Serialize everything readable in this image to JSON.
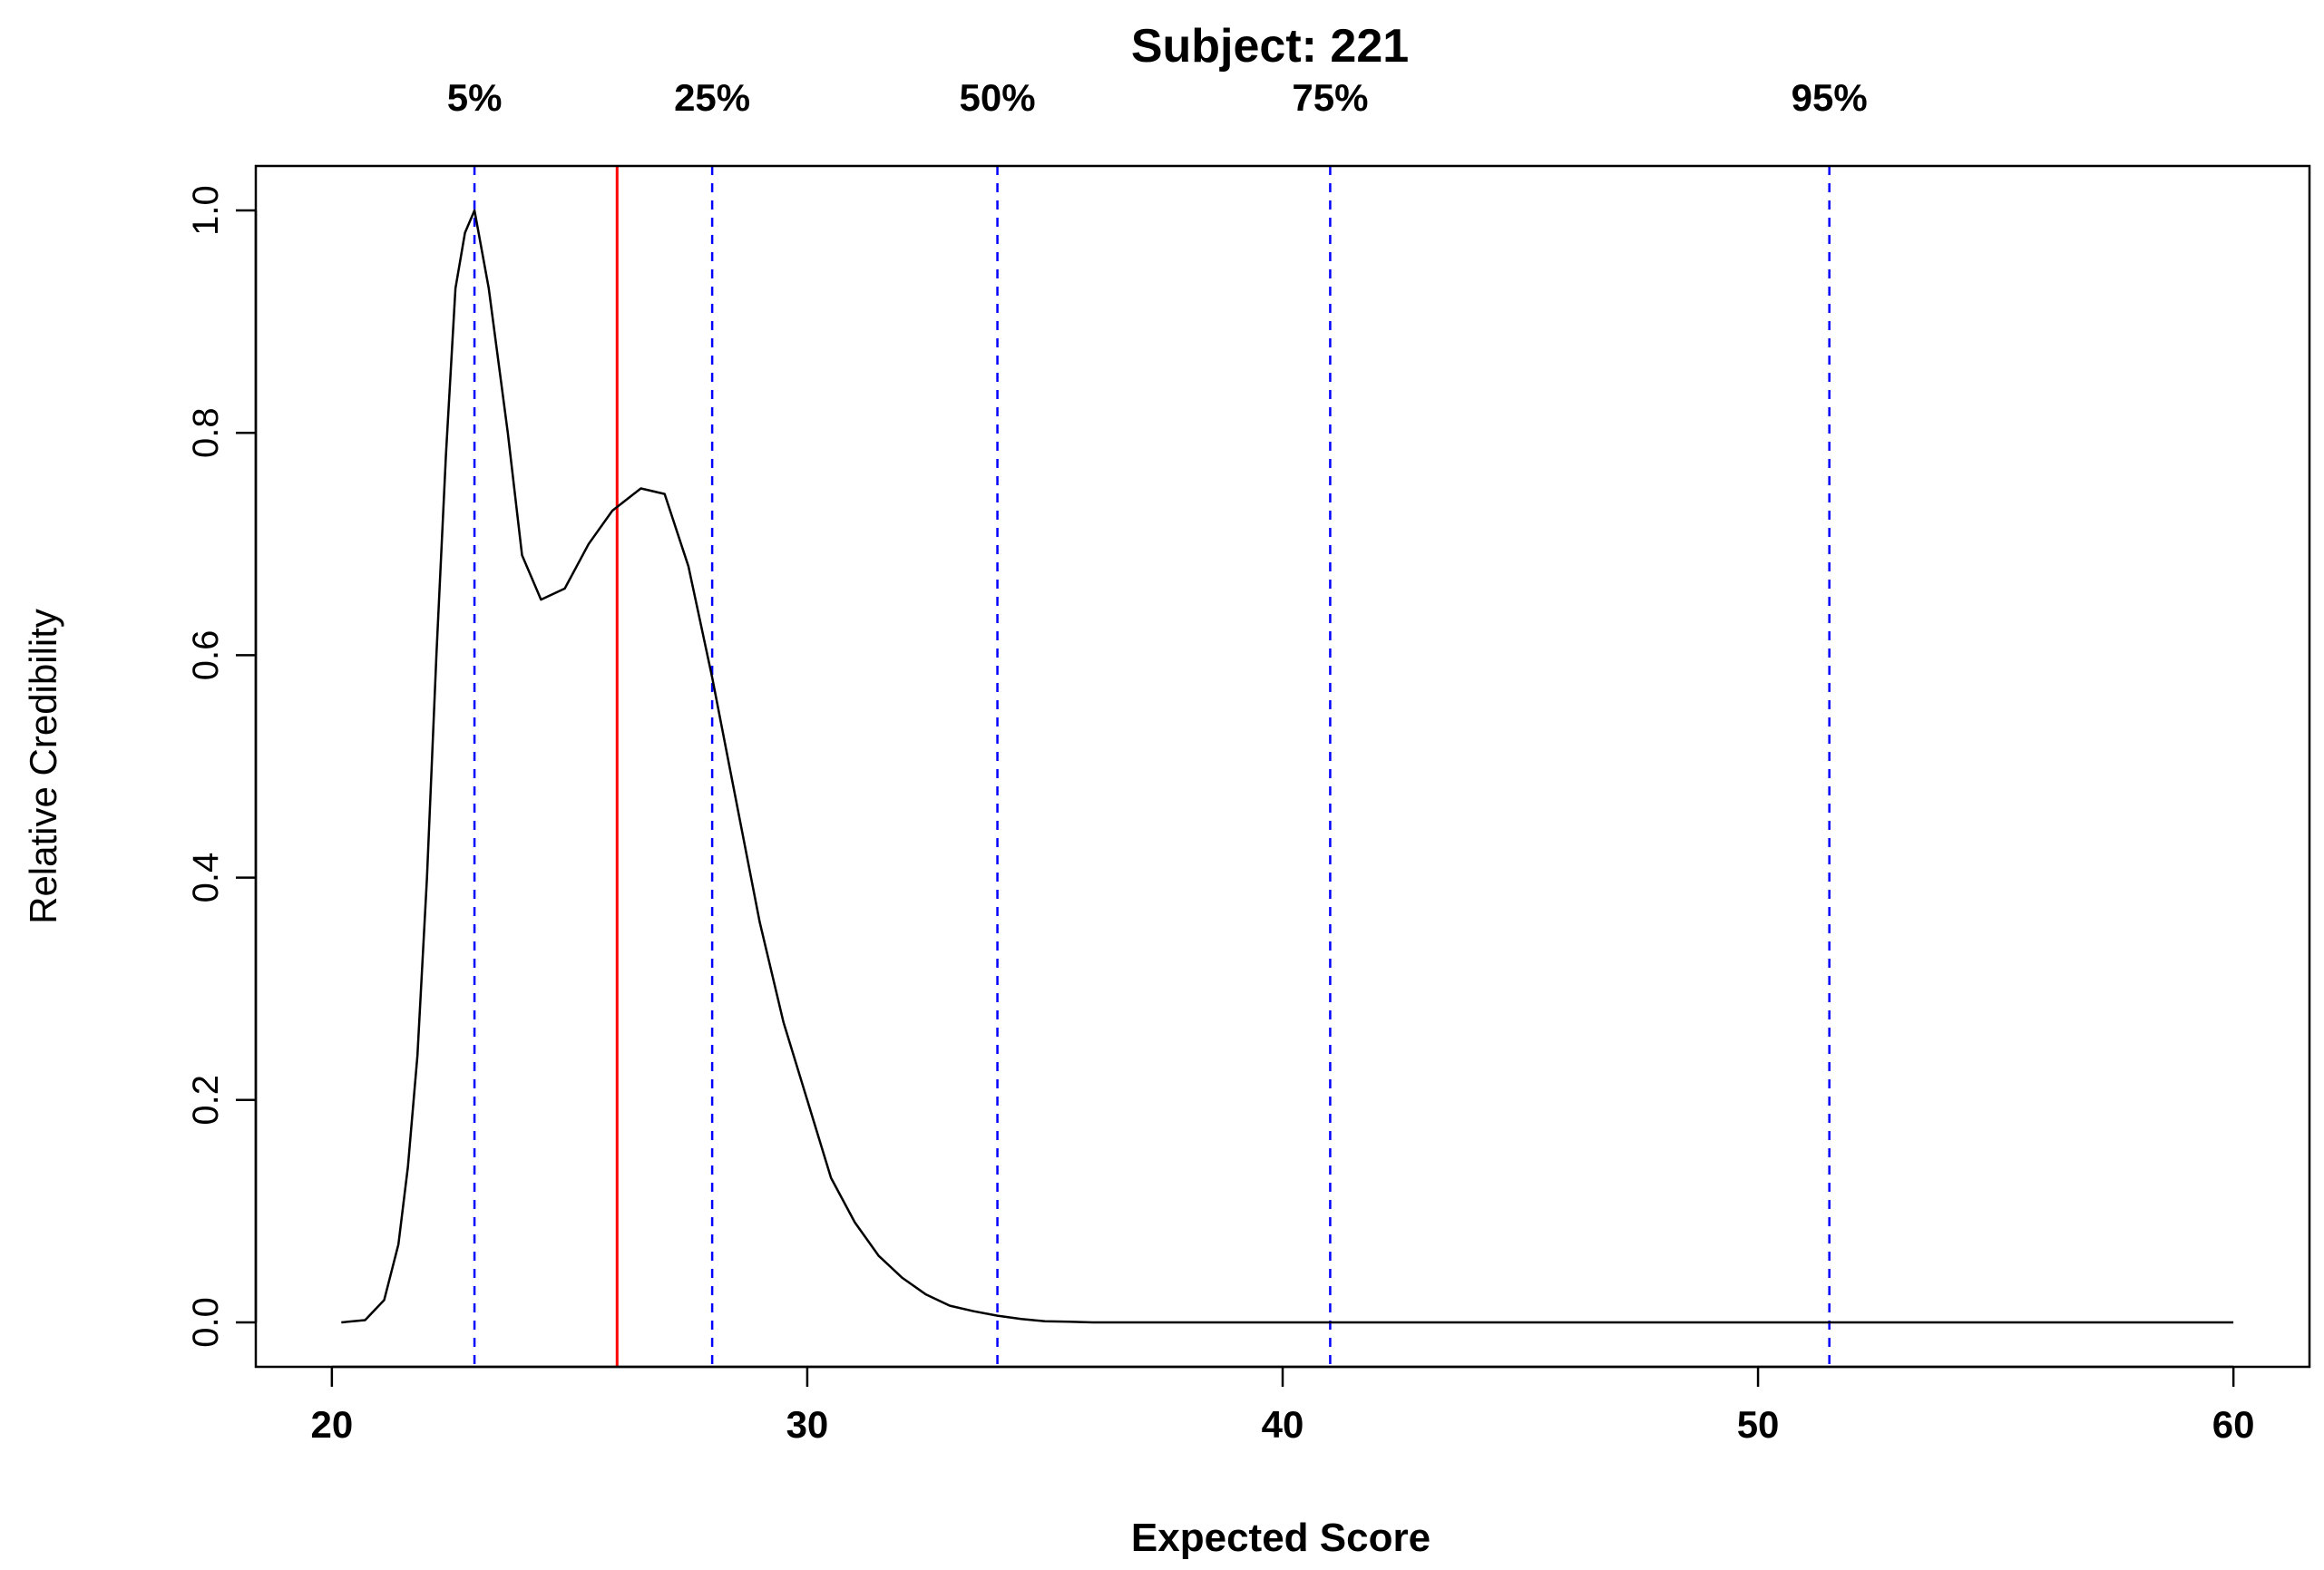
{
  "chart_data": {
    "type": "line",
    "title": "Subject:  221",
    "xlabel": "Expected Score",
    "ylabel": "Relative Credibility",
    "xlim": [
      18.4,
      61.6
    ],
    "ylim": [
      -0.04,
      1.04
    ],
    "xticks": [
      20,
      30,
      40,
      50,
      60
    ],
    "xtick_labels": [
      "20",
      "30",
      "40",
      "50",
      "60"
    ],
    "yticks": [
      0.0,
      0.2,
      0.4,
      0.6,
      0.8,
      1.0
    ],
    "ytick_labels": [
      "0.0",
      "0.2",
      "0.4",
      "0.6",
      "0.8",
      "1.0"
    ],
    "grid": false,
    "series": [
      {
        "color": "#000000",
        "x": [
          20.2,
          20.7,
          21.1,
          21.4,
          21.6,
          21.8,
          22.0,
          22.2,
          22.4,
          22.6,
          22.8,
          23.0,
          23.3,
          23.7,
          24.0,
          24.4,
          24.9,
          25.4,
          25.9,
          26.5,
          27.0,
          27.5,
          28.0,
          28.5,
          29.0,
          29.5,
          30.0,
          30.5,
          31.0,
          31.5,
          32.0,
          32.5,
          33.0,
          33.5,
          34.0,
          34.5,
          35.0,
          35.5,
          36.0,
          37.0,
          38.0,
          40.0,
          45.0,
          50.0,
          55.0,
          60.0
        ],
        "y": [
          0.0,
          0.002,
          0.02,
          0.07,
          0.14,
          0.24,
          0.4,
          0.6,
          0.78,
          0.93,
          0.98,
          1.0,
          0.93,
          0.8,
          0.69,
          0.65,
          0.66,
          0.7,
          0.73,
          0.75,
          0.745,
          0.68,
          0.58,
          0.47,
          0.36,
          0.27,
          0.2,
          0.13,
          0.09,
          0.06,
          0.04,
          0.025,
          0.015,
          0.01,
          0.006,
          0.003,
          0.001,
          0.0005,
          0.0,
          0.0,
          0.0,
          0.0,
          0.0,
          0.0,
          0.0,
          0.0
        ]
      }
    ],
    "reference_line": {
      "x": 26.0,
      "color": "#ff0000",
      "style": "solid"
    },
    "quantiles": [
      {
        "label": "5%",
        "x": 23.0
      },
      {
        "label": "25%",
        "x": 28.0
      },
      {
        "label": "50%",
        "x": 34.0
      },
      {
        "label": "75%",
        "x": 41.0
      },
      {
        "label": "95%",
        "x": 51.5
      }
    ],
    "quantile_line_color": "#0000ff",
    "quantile_line_style": "dashed"
  }
}
